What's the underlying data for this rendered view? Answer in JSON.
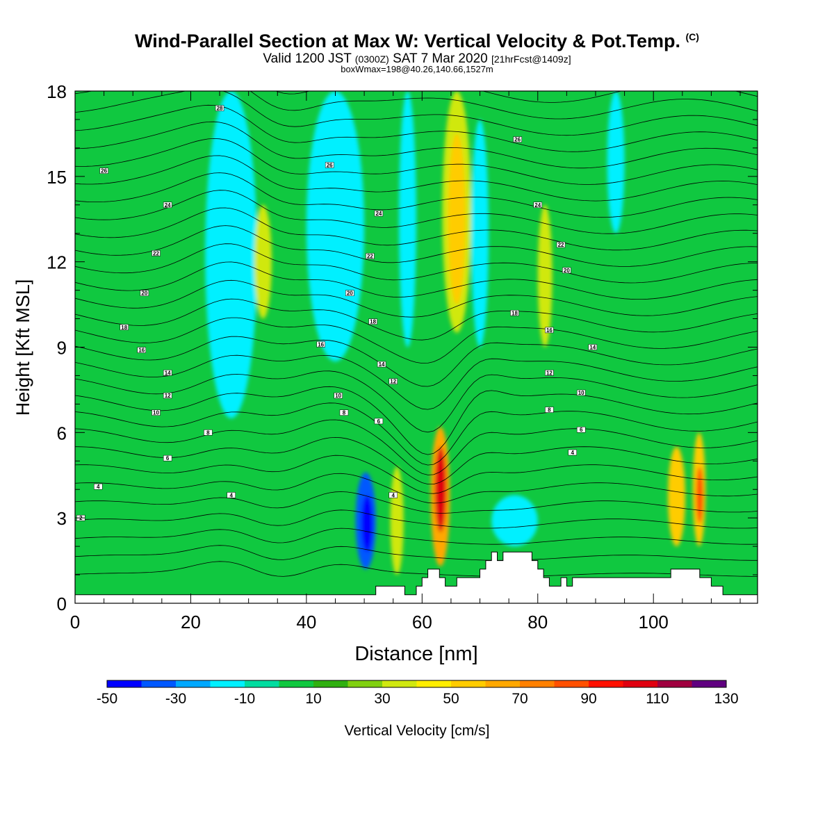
{
  "title": {
    "main": "Wind-Parallel Section at Max W: Vertical Velocity & Pot.Temp.",
    "copyright": "(C)",
    "valid_prefix": "Valid 1200 JST",
    "valid_utc": "(0300Z)",
    "valid_date": "SAT 7 Mar 2020",
    "forecast": "[21hrFcst@1409z]",
    "box_info": "boxWmax=198@40.26,140.66,1527m"
  },
  "chart_data": {
    "type": "heatmap",
    "xlabel": "Distance [nm]",
    "ylabel": "Height [Kft MSL]",
    "xlim": [
      0,
      118
    ],
    "ylim": [
      0,
      18
    ],
    "x_ticks": [
      0,
      20,
      40,
      60,
      80,
      100
    ],
    "y_ticks": [
      0,
      3,
      6,
      9,
      12,
      15,
      18
    ],
    "colorbar": {
      "label": "Vertical Velocity [cm/s]",
      "levels": [
        -50,
        -40,
        -30,
        -20,
        -10,
        0,
        10,
        20,
        30,
        40,
        50,
        60,
        70,
        80,
        90,
        100,
        110,
        120,
        130
      ],
      "tick_labels": [
        "-50",
        "-30",
        "-10",
        "10",
        "30",
        "50",
        "70",
        "90",
        "110",
        "130"
      ],
      "colors": [
        "#0000ff",
        "#0058ff",
        "#00a8ff",
        "#00f0ff",
        "#00dca0",
        "#10c840",
        "#30b010",
        "#80d010",
        "#d0e810",
        "#ffee00",
        "#ffcc00",
        "#ffa800",
        "#ff8000",
        "#ff5000",
        "#ff1000",
        "#e00010",
        "#a00040",
        "#600080"
      ]
    },
    "background_level": 5,
    "w_features": [
      {
        "x0": 25.5,
        "x1": 28.5,
        "y0": 10.5,
        "y1": 18,
        "level": 1
      },
      {
        "x0": 22.5,
        "x1": 31.5,
        "y0": 6.5,
        "y1": 18,
        "level": 3
      },
      {
        "x0": 44,
        "x1": 46.5,
        "y0": 11,
        "y1": 18,
        "level": 1
      },
      {
        "x0": 40,
        "x1": 50,
        "y0": 8.5,
        "y1": 18,
        "level": 3
      },
      {
        "x0": 56,
        "x1": 59,
        "y0": 9,
        "y1": 18,
        "level": 3
      },
      {
        "x0": 31,
        "x1": 34,
        "y0": 10,
        "y1": 14,
        "level": 8
      },
      {
        "x0": 63.5,
        "x1": 68.5,
        "y0": 9.5,
        "y1": 18,
        "level": 8
      },
      {
        "x0": 64.5,
        "x1": 67.5,
        "y0": 10.5,
        "y1": 16.5,
        "level": 10
      },
      {
        "x0": 68.5,
        "x1": 71.5,
        "y0": 9,
        "y1": 17,
        "level": 3
      },
      {
        "x0": 80,
        "x1": 82.5,
        "y0": 9,
        "y1": 14,
        "level": 8
      },
      {
        "x0": 92,
        "x1": 95,
        "y0": 13,
        "y1": 18,
        "level": 3
      },
      {
        "x0": 48.5,
        "x1": 52,
        "y0": 1.2,
        "y1": 4.6,
        "level": 1
      },
      {
        "x0": 49.5,
        "x1": 51.5,
        "y0": 1.8,
        "y1": 3.8,
        "level": 0
      },
      {
        "x0": 54.5,
        "x1": 56.8,
        "y0": 1,
        "y1": 4.8,
        "level": 8
      },
      {
        "x0": 61.5,
        "x1": 64.8,
        "y0": 1.3,
        "y1": 6.2,
        "level": 11
      },
      {
        "x0": 62.2,
        "x1": 64.2,
        "y0": 2.5,
        "y1": 5.5,
        "level": 15
      },
      {
        "x0": 72,
        "x1": 80,
        "y0": 2,
        "y1": 3.8,
        "level": 3
      },
      {
        "x0": 102.5,
        "x1": 105.5,
        "y0": 2,
        "y1": 5.5,
        "level": 10
      },
      {
        "x0": 106.8,
        "x1": 109,
        "y0": 2,
        "y1": 6,
        "level": 10
      },
      {
        "x0": 107.4,
        "x1": 108.6,
        "y0": 2.8,
        "y1": 4.8,
        "level": 13
      }
    ],
    "theta_labels": [
      {
        "x": 25,
        "y": 17.4,
        "text": "28"
      },
      {
        "x": 5,
        "y": 15.2,
        "text": "26"
      },
      {
        "x": 44,
        "y": 15.4,
        "text": "26"
      },
      {
        "x": 76.5,
        "y": 16.3,
        "text": "26"
      },
      {
        "x": 16,
        "y": 14,
        "text": "24"
      },
      {
        "x": 52.5,
        "y": 13.7,
        "text": "24"
      },
      {
        "x": 80,
        "y": 14,
        "text": "24"
      },
      {
        "x": 14,
        "y": 12.3,
        "text": "22"
      },
      {
        "x": 51,
        "y": 12.2,
        "text": "22"
      },
      {
        "x": 84,
        "y": 12.6,
        "text": "22"
      },
      {
        "x": 12,
        "y": 10.9,
        "text": "20"
      },
      {
        "x": 47.5,
        "y": 10.9,
        "text": "20"
      },
      {
        "x": 85,
        "y": 11.7,
        "text": "20"
      },
      {
        "x": 8.5,
        "y": 9.7,
        "text": "18"
      },
      {
        "x": 51.5,
        "y": 9.9,
        "text": "18"
      },
      {
        "x": 76,
        "y": 10.2,
        "text": "18"
      },
      {
        "x": 11.5,
        "y": 8.9,
        "text": "16"
      },
      {
        "x": 42.5,
        "y": 9.1,
        "text": "16"
      },
      {
        "x": 82,
        "y": 9.6,
        "text": "16"
      },
      {
        "x": 16,
        "y": 8.1,
        "text": "14"
      },
      {
        "x": 53,
        "y": 8.4,
        "text": "14"
      },
      {
        "x": 89.5,
        "y": 9,
        "text": "14"
      },
      {
        "x": 16,
        "y": 7.3,
        "text": "12"
      },
      {
        "x": 55,
        "y": 7.8,
        "text": "12"
      },
      {
        "x": 82,
        "y": 8.1,
        "text": "12"
      },
      {
        "x": 14,
        "y": 6.7,
        "text": "10"
      },
      {
        "x": 45.5,
        "y": 7.3,
        "text": "10"
      },
      {
        "x": 87.5,
        "y": 7.4,
        "text": "10"
      },
      {
        "x": 23,
        "y": 6,
        "text": "8"
      },
      {
        "x": 46.5,
        "y": 6.7,
        "text": "8"
      },
      {
        "x": 82,
        "y": 6.8,
        "text": "8"
      },
      {
        "x": 16,
        "y": 5.1,
        "text": "6"
      },
      {
        "x": 52.5,
        "y": 6.4,
        "text": "6"
      },
      {
        "x": 87.5,
        "y": 6.1,
        "text": "6"
      },
      {
        "x": 4,
        "y": 4.1,
        "text": "4"
      },
      {
        "x": 27,
        "y": 3.8,
        "text": "4"
      },
      {
        "x": 55,
        "y": 3.8,
        "text": "4"
      },
      {
        "x": 86,
        "y": 5.3,
        "text": "4"
      },
      {
        "x": 1,
        "y": 3,
        "text": "2"
      }
    ]
  }
}
